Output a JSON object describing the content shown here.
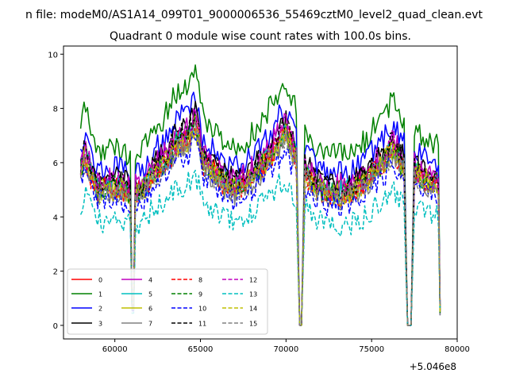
{
  "suptitle": "n file: modeM0/AS1A14_099T01_9000006536_55469cztM0_level2_quad_clean.evt",
  "chart_data": {
    "type": "line",
    "title": "Quadrant 0 module wise count rates with 100.0s bins.",
    "xlabel": "",
    "ylabel": "",
    "x_offset_label": "+5.046e8",
    "xlim": [
      57000,
      80000
    ],
    "ylim": [
      -0.5,
      10.3
    ],
    "xticks": [
      60000,
      65000,
      70000,
      75000,
      80000
    ],
    "xtick_labels": [
      "60000",
      "65000",
      "70000",
      "75000",
      "80000"
    ],
    "yticks": [
      0,
      2,
      4,
      6,
      8,
      10
    ],
    "ytick_labels": [
      "0",
      "2",
      "4",
      "6",
      "8",
      "10"
    ],
    "x_start": 58000,
    "x_end": 79000,
    "bin": 100,
    "gaps": [
      [
        60950,
        61150
      ],
      [
        70700,
        71050
      ],
      [
        76950,
        77450
      ]
    ],
    "profile_anchors": [
      [
        58000,
        5.8
      ],
      [
        58300,
        6.3
      ],
      [
        58600,
        5.6
      ],
      [
        59000,
        5.0
      ],
      [
        59600,
        5.1
      ],
      [
        60300,
        5.1
      ],
      [
        60800,
        4.9
      ],
      [
        61600,
        5.0
      ],
      [
        62200,
        5.6
      ],
      [
        62900,
        6.0
      ],
      [
        63600,
        6.7
      ],
      [
        64300,
        6.9
      ],
      [
        64700,
        7.5
      ],
      [
        65100,
        6.1
      ],
      [
        65700,
        5.7
      ],
      [
        66400,
        5.3
      ],
      [
        67000,
        5.1
      ],
      [
        67600,
        5.3
      ],
      [
        68300,
        5.7
      ],
      [
        68900,
        6.1
      ],
      [
        69600,
        6.8
      ],
      [
        70000,
        7.1
      ],
      [
        70300,
        6.6
      ],
      [
        70600,
        6.2
      ],
      [
        71200,
        5.6
      ],
      [
        71800,
        5.1
      ],
      [
        72500,
        4.9
      ],
      [
        73200,
        4.9
      ],
      [
        73900,
        5.0
      ],
      [
        74600,
        5.3
      ],
      [
        75300,
        5.8
      ],
      [
        75900,
        6.2
      ],
      [
        76300,
        6.6
      ],
      [
        76700,
        6.0
      ],
      [
        77600,
        5.6
      ],
      [
        78200,
        5.4
      ],
      [
        79000,
        5.2
      ]
    ],
    "series": [
      {
        "name": "0",
        "color": "#ff0000",
        "dash": "solid",
        "scale": 1.0
      },
      {
        "name": "1",
        "color": "#008000",
        "dash": "solid",
        "scale": 1.28
      },
      {
        "name": "2",
        "color": "#0000ff",
        "dash": "solid",
        "scale": 1.14
      },
      {
        "name": "3",
        "color": "#000000",
        "dash": "solid",
        "scale": 1.06
      },
      {
        "name": "4",
        "color": "#bf00bf",
        "dash": "solid",
        "scale": 1.05
      },
      {
        "name": "5",
        "color": "#00bfbf",
        "dash": "solid",
        "scale": 1.0
      },
      {
        "name": "6",
        "color": "#bfbf00",
        "dash": "solid",
        "scale": 0.99
      },
      {
        "name": "7",
        "color": "#808080",
        "dash": "solid",
        "scale": 0.96
      },
      {
        "name": "8",
        "color": "#ff0000",
        "dash": "dashed",
        "scale": 0.98
      },
      {
        "name": "9",
        "color": "#008000",
        "dash": "dashed",
        "scale": 1.0
      },
      {
        "name": "10",
        "color": "#0000ff",
        "dash": "dashed",
        "scale": 0.91
      },
      {
        "name": "11",
        "color": "#000000",
        "dash": "dashed",
        "scale": 1.04
      },
      {
        "name": "12",
        "color": "#bf00bf",
        "dash": "dashed",
        "scale": 1.02
      },
      {
        "name": "13",
        "color": "#00bfbf",
        "dash": "dashed",
        "scale": 0.76
      },
      {
        "name": "14",
        "color": "#bfbf00",
        "dash": "dashed",
        "scale": 0.99
      },
      {
        "name": "15",
        "color": "#808080",
        "dash": "dashed",
        "scale": 0.97
      }
    ],
    "legend_position": "lower-left",
    "legend_columns": 4
  }
}
